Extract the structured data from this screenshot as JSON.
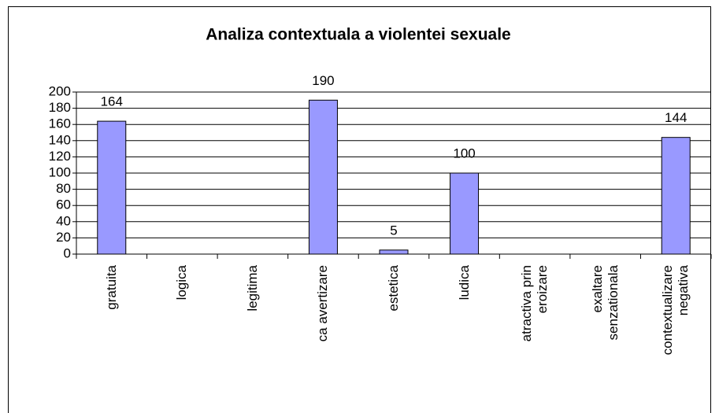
{
  "chart_data": {
    "type": "bar",
    "title": "Analiza contextuala a violentei sexuale",
    "categories": [
      "gratuita",
      "logica",
      "legitima",
      "ca avertizare",
      "estetica",
      "ludica",
      "atractiva prin eroizare",
      "exaltare senzationala",
      "contextualizare negativa"
    ],
    "values": [
      164,
      null,
      null,
      190,
      5,
      100,
      null,
      null,
      144
    ],
    "color": "#9999ff",
    "ylim": [
      0,
      200
    ],
    "yticks": [
      0,
      20,
      40,
      60,
      80,
      100,
      120,
      140,
      160,
      180,
      200
    ],
    "grid": true
  }
}
